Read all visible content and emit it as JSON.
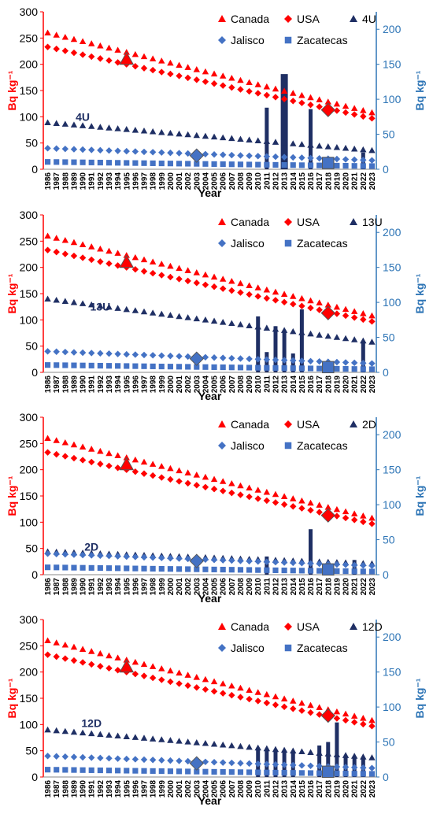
{
  "colors": {
    "canada": "#ff0000",
    "usa": "#ff0000",
    "site": "#1f2f64",
    "jalisco": "#4472c4",
    "zacatecas": "#4472c4",
    "left_axis": "#ff0000",
    "right_axis": "#2e75b6"
  },
  "chart_data": [
    {
      "type": "scatter",
      "title": "",
      "xlabel": "Year",
      "ylabel": "Bq kg⁻¹",
      "y2label": "Bq kg⁻¹",
      "ylim": [
        0,
        300
      ],
      "y2lim": [
        0,
        225
      ],
      "yticks": [
        0,
        50,
        100,
        150,
        200,
        250,
        300
      ],
      "y2ticks": [
        0,
        50,
        100,
        150,
        200
      ],
      "x": [
        1986,
        1987,
        1988,
        1989,
        1990,
        1991,
        1992,
        1993,
        1994,
        1995,
        1996,
        1997,
        1998,
        1999,
        2000,
        2001,
        2002,
        2003,
        2004,
        2005,
        2006,
        2007,
        2008,
        2009,
        2010,
        2011,
        2012,
        2013,
        2014,
        2015,
        2016,
        2017,
        2018,
        2019,
        2020,
        2021,
        2022,
        2023
      ],
      "x_tick_labels": [
        "1986",
        "1987",
        "1988",
        "1989",
        "1990",
        "1991",
        "1992",
        "1993",
        "1994",
        "1995",
        "1996",
        "1997",
        "1998",
        "1999",
        "2000",
        "2001",
        "2002",
        "2003",
        "2004",
        "2005",
        "2006",
        "2007",
        "2008",
        "2009",
        "2010",
        "2011",
        "2012",
        "2013",
        "2014",
        "2015",
        "2016",
        "2017",
        "2018",
        "2019",
        "2020",
        "2021",
        "2022",
        "2023"
      ],
      "legend": [
        {
          "name": "Canada",
          "marker": "triangle",
          "color_key": "canada"
        },
        {
          "name": "USA",
          "marker": "diamond",
          "color_key": "usa"
        },
        {
          "name": "4U",
          "marker": "triangle",
          "color_key": "site"
        },
        {
          "name": "Jalisco",
          "marker": "diamond",
          "color_key": "jalisco"
        },
        {
          "name": "Zacatecas",
          "marker": "square",
          "color_key": "zacatecas"
        }
      ],
      "series": [
        {
          "name": "Canada",
          "marker": "triangle",
          "color_key": "canada",
          "axis": "left",
          "start": 260,
          "end": 108
        },
        {
          "name": "USA",
          "marker": "diamond",
          "color_key": "usa",
          "axis": "left",
          "start": 233,
          "end": 97
        },
        {
          "name": "4U",
          "marker": "triangle",
          "color_key": "site",
          "axis": "left",
          "start": 89,
          "end": 36
        },
        {
          "name": "Jalisco",
          "marker": "diamond",
          "color_key": "jalisco",
          "axis": "left",
          "start": 40,
          "end": 17
        },
        {
          "name": "Zacatecas",
          "marker": "square",
          "color_key": "zacatecas",
          "axis": "left",
          "start": 14,
          "end": 6
        }
      ],
      "highlights": [
        {
          "marker": "triangle",
          "color_key": "canada",
          "year": 1995,
          "value": 210
        },
        {
          "marker": "diamond",
          "color_key": "usa",
          "year": 2018,
          "value": 113
        },
        {
          "marker": "diamond",
          "color_key": "jalisco",
          "year": 2003,
          "value": 26
        },
        {
          "marker": "square",
          "color_key": "zacatecas",
          "year": 2018,
          "value": 12
        }
      ],
      "bars": [
        {
          "year": 2011,
          "value": 88
        },
        {
          "year": 2013,
          "value": 136
        },
        {
          "year": 2016,
          "value": 86
        },
        {
          "year": 2022,
          "value": 24
        }
      ],
      "annotation": {
        "text": "4U",
        "year": 1990,
        "value": 100
      }
    },
    {
      "type": "scatter",
      "title": "",
      "xlabel": "Year",
      "ylabel": "Bq kg⁻¹",
      "y2label": "Bq kg⁻¹",
      "ylim": [
        0,
        300
      ],
      "y2lim": [
        0,
        225
      ],
      "yticks": [
        0,
        50,
        100,
        150,
        200,
        250,
        300
      ],
      "y2ticks": [
        0,
        50,
        100,
        150,
        200
      ],
      "x": [
        1986,
        1987,
        1988,
        1989,
        1990,
        1991,
        1992,
        1993,
        1994,
        1995,
        1996,
        1997,
        1998,
        1999,
        2000,
        2001,
        2002,
        2003,
        2004,
        2005,
        2006,
        2007,
        2008,
        2009,
        2010,
        2011,
        2012,
        2013,
        2014,
        2015,
        2016,
        2017,
        2018,
        2019,
        2020,
        2021,
        2022,
        2023
      ],
      "x_tick_labels": [
        "1986",
        "1987",
        "1988",
        "1989",
        "1990",
        "1991",
        "1992",
        "1993",
        "1994",
        "1995",
        "1996",
        "1997",
        "1998",
        "1999",
        "2000",
        "2001",
        "2002",
        "2003",
        "2004",
        "2005",
        "2006",
        "2007",
        "2008",
        "2009",
        "2010",
        "2011",
        "2012",
        "2013",
        "2014",
        "2015",
        "2016",
        "2017",
        "2018",
        "2019",
        "2020",
        "2021",
        "2022",
        "2023"
      ],
      "legend": [
        {
          "name": "Canada",
          "marker": "triangle",
          "color_key": "canada"
        },
        {
          "name": "USA",
          "marker": "diamond",
          "color_key": "usa"
        },
        {
          "name": "13U",
          "marker": "triangle",
          "color_key": "site"
        },
        {
          "name": "Jalisco",
          "marker": "diamond",
          "color_key": "jalisco"
        },
        {
          "name": "Zacatecas",
          "marker": "square",
          "color_key": "zacatecas"
        }
      ],
      "series": [
        {
          "name": "Canada",
          "marker": "triangle",
          "color_key": "canada",
          "axis": "left",
          "start": 260,
          "end": 108
        },
        {
          "name": "USA",
          "marker": "diamond",
          "color_key": "usa",
          "axis": "left",
          "start": 233,
          "end": 97
        },
        {
          "name": "13U",
          "marker": "triangle",
          "color_key": "site",
          "axis": "left",
          "start": 140,
          "end": 58
        },
        {
          "name": "Jalisco",
          "marker": "diamond",
          "color_key": "jalisco",
          "axis": "left",
          "start": 40,
          "end": 17
        },
        {
          "name": "Zacatecas",
          "marker": "square",
          "color_key": "zacatecas",
          "axis": "left",
          "start": 14,
          "end": 6
        }
      ],
      "highlights": [
        {
          "marker": "triangle",
          "color_key": "canada",
          "year": 1995,
          "value": 210
        },
        {
          "marker": "diamond",
          "color_key": "usa",
          "year": 2018,
          "value": 113
        },
        {
          "marker": "diamond",
          "color_key": "jalisco",
          "year": 2003,
          "value": 26
        },
        {
          "marker": "square",
          "color_key": "zacatecas",
          "year": 2018,
          "value": 10
        }
      ],
      "bars": [
        {
          "year": 2010,
          "value": 80
        },
        {
          "year": 2011,
          "value": 29
        },
        {
          "year": 2012,
          "value": 66
        },
        {
          "year": 2013,
          "value": 60
        },
        {
          "year": 2014,
          "value": 27
        },
        {
          "year": 2015,
          "value": 90
        },
        {
          "year": 2022,
          "value": 45
        }
      ],
      "annotation": {
        "text": "13U",
        "year": 1992,
        "value": 125
      }
    },
    {
      "type": "scatter",
      "title": "",
      "xlabel": "Year",
      "ylabel": "Bq kg⁻¹",
      "y2label": "Bq kg⁻¹",
      "ylim": [
        0,
        300
      ],
      "y2lim": [
        0,
        225
      ],
      "yticks": [
        0,
        50,
        100,
        150,
        200,
        250,
        300
      ],
      "y2ticks": [
        0,
        50,
        100,
        150,
        200
      ],
      "x": [
        1986,
        1987,
        1988,
        1989,
        1990,
        1991,
        1992,
        1993,
        1994,
        1995,
        1996,
        1997,
        1998,
        1999,
        2000,
        2001,
        2002,
        2003,
        2004,
        2005,
        2006,
        2007,
        2008,
        2009,
        2010,
        2011,
        2012,
        2013,
        2014,
        2015,
        2016,
        2017,
        2018,
        2019,
        2020,
        2021,
        2022,
        2023
      ],
      "x_tick_labels": [
        "1986",
        "1987",
        "1988",
        "1989",
        "1990",
        "1991",
        "1992",
        "1993",
        "1994",
        "1995",
        "1996",
        "1997",
        "1998",
        "1999",
        "2000",
        "2001",
        "2002",
        "2003",
        "2004",
        "2005",
        "2006",
        "2007",
        "2008",
        "2009",
        "2010",
        "2011",
        "2012",
        "2013",
        "2014",
        "2015",
        "2016",
        "2017",
        "2018",
        "2019",
        "2020",
        "2021",
        "2022",
        "2023"
      ],
      "legend": [
        {
          "name": "Canada",
          "marker": "triangle",
          "color_key": "canada"
        },
        {
          "name": "USA",
          "marker": "diamond",
          "color_key": "usa"
        },
        {
          "name": "2D",
          "marker": "triangle",
          "color_key": "site"
        },
        {
          "name": "Jalisco",
          "marker": "diamond",
          "color_key": "jalisco"
        },
        {
          "name": "Zacatecas",
          "marker": "square",
          "color_key": "zacatecas"
        }
      ],
      "series": [
        {
          "name": "Canada",
          "marker": "triangle",
          "color_key": "canada",
          "axis": "left",
          "start": 260,
          "end": 108
        },
        {
          "name": "USA",
          "marker": "diamond",
          "color_key": "usa",
          "axis": "left",
          "start": 233,
          "end": 97
        },
        {
          "name": "2D",
          "marker": "triangle",
          "color_key": "site",
          "axis": "left",
          "start": 44,
          "end": 21
        },
        {
          "name": "Jalisco",
          "marker": "diamond",
          "color_key": "jalisco",
          "axis": "left",
          "start": 40,
          "end": 17
        },
        {
          "name": "Zacatecas",
          "marker": "square",
          "color_key": "zacatecas",
          "axis": "left",
          "start": 14,
          "end": 6
        }
      ],
      "highlights": [
        {
          "marker": "triangle",
          "color_key": "canada",
          "year": 1995,
          "value": 210
        },
        {
          "marker": "diamond",
          "color_key": "usa",
          "year": 2018,
          "value": 113
        },
        {
          "marker": "diamond",
          "color_key": "jalisco",
          "year": 2003,
          "value": 26
        },
        {
          "marker": "square",
          "color_key": "zacatecas",
          "year": 2018,
          "value": 10
        }
      ],
      "bars": [
        {
          "year": 2016,
          "value": 65
        },
        {
          "year": 2011,
          "value": 26
        },
        {
          "year": 2021,
          "value": 21
        }
      ],
      "annotation": {
        "text": "2D",
        "year": 1991,
        "value": 53
      }
    },
    {
      "type": "scatter",
      "title": "",
      "xlabel": "Year",
      "ylabel": "Bq kg⁻¹",
      "y2label": "Bq kg⁻¹",
      "ylim": [
        0,
        300
      ],
      "y2lim": [
        0,
        225
      ],
      "yticks": [
        0,
        50,
        100,
        150,
        200,
        250,
        300
      ],
      "y2ticks": [
        0,
        50,
        100,
        150,
        200
      ],
      "x": [
        1986,
        1987,
        1988,
        1989,
        1990,
        1991,
        1992,
        1993,
        1994,
        1995,
        1996,
        1997,
        1998,
        1999,
        2000,
        2001,
        2002,
        2003,
        2004,
        2005,
        2006,
        2007,
        2008,
        2009,
        2010,
        2011,
        2012,
        2013,
        2014,
        2015,
        2016,
        2017,
        2018,
        2019,
        2020,
        2021,
        2022,
        2023
      ],
      "x_tick_labels": [
        "1986",
        "1987",
        "1988",
        "1989",
        "1990",
        "1991",
        "1992",
        "1993",
        "1994",
        "1995",
        "1996",
        "1997",
        "1998",
        "1999",
        "2000",
        "2001",
        "2002",
        "2003",
        "2004",
        "2005",
        "2006",
        "2007",
        "2008",
        "2009",
        "2010",
        "2011",
        "2012",
        "2013",
        "2014",
        "2015",
        "2016",
        "2017",
        "2018",
        "2019",
        "2020",
        "2021",
        "2022",
        "2023"
      ],
      "legend": [
        {
          "name": "Canada",
          "marker": "triangle",
          "color_key": "canada"
        },
        {
          "name": "USA",
          "marker": "diamond",
          "color_key": "usa"
        },
        {
          "name": "12D",
          "marker": "triangle",
          "color_key": "site"
        },
        {
          "name": "Jalisco",
          "marker": "diamond",
          "color_key": "jalisco"
        },
        {
          "name": "Zacatecas",
          "marker": "square",
          "color_key": "zacatecas"
        }
      ],
      "series": [
        {
          "name": "Canada",
          "marker": "triangle",
          "color_key": "canada",
          "axis": "left",
          "start": 260,
          "end": 108
        },
        {
          "name": "USA",
          "marker": "diamond",
          "color_key": "usa",
          "axis": "left",
          "start": 233,
          "end": 97
        },
        {
          "name": "12D",
          "marker": "triangle",
          "color_key": "site",
          "axis": "left",
          "start": 90,
          "end": 37
        },
        {
          "name": "Jalisco",
          "marker": "diamond",
          "color_key": "jalisco",
          "axis": "left",
          "start": 40,
          "end": 17
        },
        {
          "name": "Zacatecas",
          "marker": "square",
          "color_key": "zacatecas",
          "axis": "left",
          "start": 14,
          "end": 6
        }
      ],
      "highlights": [
        {
          "marker": "triangle",
          "color_key": "canada",
          "year": 1995,
          "value": 210
        },
        {
          "marker": "diamond",
          "color_key": "usa",
          "year": 2018,
          "value": 117
        },
        {
          "marker": "diamond",
          "color_key": "jalisco",
          "year": 2003,
          "value": 26
        },
        {
          "marker": "square",
          "color_key": "zacatecas",
          "year": 2018,
          "value": 10
        }
      ],
      "bars": [
        {
          "year": 2010,
          "value": 42
        },
        {
          "year": 2011,
          "value": 40
        },
        {
          "year": 2012,
          "value": 38
        },
        {
          "year": 2013,
          "value": 37
        },
        {
          "year": 2014,
          "value": 35
        },
        {
          "year": 2017,
          "value": 45
        },
        {
          "year": 2018,
          "value": 50
        },
        {
          "year": 2019,
          "value": 78
        },
        {
          "year": 2020,
          "value": 30
        },
        {
          "year": 2021,
          "value": 28
        },
        {
          "year": 2022,
          "value": 26
        }
      ],
      "annotation": {
        "text": "12D",
        "year": 1991,
        "value": 103
      }
    }
  ]
}
